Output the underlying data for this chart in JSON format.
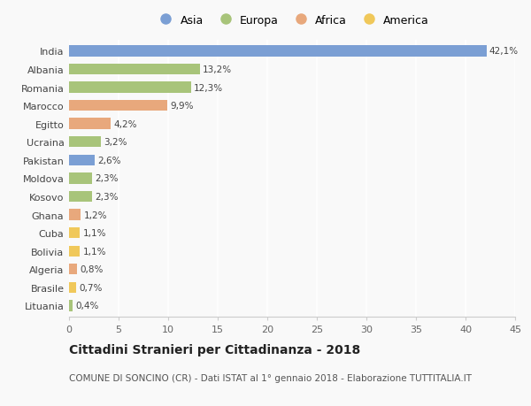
{
  "countries": [
    "India",
    "Albania",
    "Romania",
    "Marocco",
    "Egitto",
    "Ucraina",
    "Pakistan",
    "Moldova",
    "Kosovo",
    "Ghana",
    "Cuba",
    "Bolivia",
    "Algeria",
    "Brasile",
    "Lituania"
  ],
  "values": [
    42.1,
    13.2,
    12.3,
    9.9,
    4.2,
    3.2,
    2.6,
    2.3,
    2.3,
    1.2,
    1.1,
    1.1,
    0.8,
    0.7,
    0.4
  ],
  "labels": [
    "42,1%",
    "13,2%",
    "12,3%",
    "9,9%",
    "4,2%",
    "3,2%",
    "2,6%",
    "2,3%",
    "2,3%",
    "1,2%",
    "1,1%",
    "1,1%",
    "0,8%",
    "0,7%",
    "0,4%"
  ],
  "continents": [
    "Asia",
    "Europa",
    "Europa",
    "Africa",
    "Africa",
    "Europa",
    "Asia",
    "Europa",
    "Europa",
    "Africa",
    "America",
    "America",
    "Africa",
    "America",
    "Europa"
  ],
  "continent_colors": {
    "Asia": "#7b9fd4",
    "Europa": "#a8c47a",
    "Africa": "#e8a87c",
    "America": "#f0c85a"
  },
  "legend_order": [
    "Asia",
    "Europa",
    "Africa",
    "America"
  ],
  "xlim": [
    0,
    45
  ],
  "xticks": [
    0,
    5,
    10,
    15,
    20,
    25,
    30,
    35,
    40,
    45
  ],
  "title": "Cittadini Stranieri per Cittadinanza - 2018",
  "subtitle": "COMUNE DI SONCINO (CR) - Dati ISTAT al 1° gennaio 2018 - Elaborazione TUTTITALIA.IT",
  "bg_color": "#f9f9f9",
  "bar_height": 0.6,
  "label_fontsize": 7.5,
  "title_fontsize": 10,
  "subtitle_fontsize": 7.5,
  "tick_fontsize": 8,
  "legend_fontsize": 9
}
